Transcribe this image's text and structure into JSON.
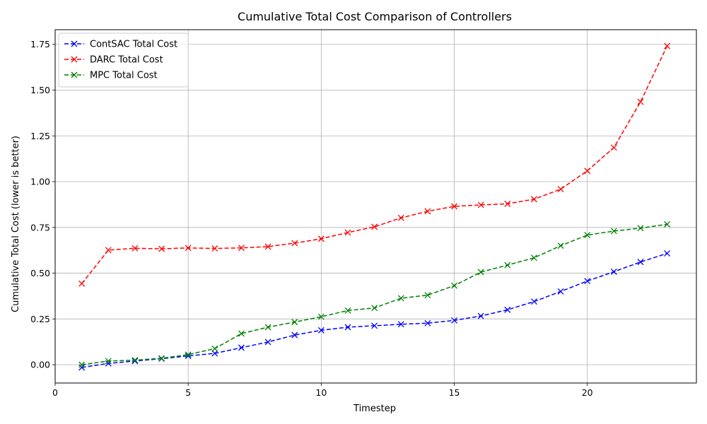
{
  "chart_data": {
    "type": "line",
    "title": "Cumulative Total Cost Comparison of Controllers",
    "xlabel": "Timestep",
    "ylabel": "Cumulative Total Cost (lower is better)",
    "xlim": [
      0,
      24.1
    ],
    "ylim": [
      -0.1,
      1.83
    ],
    "xticks": [
      0,
      5,
      10,
      15,
      20
    ],
    "yticks": [
      0.0,
      0.25,
      0.5,
      0.75,
      1.0,
      1.25,
      1.5,
      1.75
    ],
    "xtick_labels": [
      "0",
      "5",
      "10",
      "15",
      "20"
    ],
    "ytick_labels": [
      "0.00",
      "0.25",
      "0.50",
      "0.75",
      "1.00",
      "1.25",
      "1.50",
      "1.75"
    ],
    "grid": true,
    "legend_position": "top-left",
    "x": [
      1,
      2,
      3,
      4,
      5,
      6,
      7,
      8,
      9,
      10,
      11,
      12,
      13,
      14,
      15,
      16,
      17,
      18,
      19,
      20,
      21,
      22,
      23
    ],
    "series": [
      {
        "name": "ContSAC Total Cost",
        "color": "#0000ff",
        "line_style": "dashed",
        "marker": "x",
        "values": [
          -0.015,
          0.007,
          0.02,
          0.033,
          0.048,
          0.062,
          0.093,
          0.124,
          0.162,
          0.188,
          0.205,
          0.213,
          0.221,
          0.227,
          0.242,
          0.266,
          0.3,
          0.345,
          0.4,
          0.457,
          0.508,
          0.561,
          0.608
        ]
      },
      {
        "name": "DARC Total Cost",
        "color": "#ff0000",
        "line_style": "dashed",
        "marker": "x",
        "values": [
          0.443,
          0.626,
          0.636,
          0.633,
          0.638,
          0.635,
          0.638,
          0.645,
          0.664,
          0.688,
          0.722,
          0.753,
          0.802,
          0.838,
          0.865,
          0.873,
          0.879,
          0.904,
          0.959,
          1.059,
          1.186,
          1.436,
          1.741
        ]
      },
      {
        "name": "MPC Total Cost",
        "color": "#008000",
        "line_style": "dashed",
        "marker": "x",
        "values": [
          0.0,
          0.02,
          0.025,
          0.035,
          0.055,
          0.088,
          0.17,
          0.205,
          0.233,
          0.262,
          0.296,
          0.31,
          0.363,
          0.38,
          0.432,
          0.506,
          0.544,
          0.584,
          0.65,
          0.708,
          0.73,
          0.746,
          0.767
        ]
      }
    ]
  }
}
